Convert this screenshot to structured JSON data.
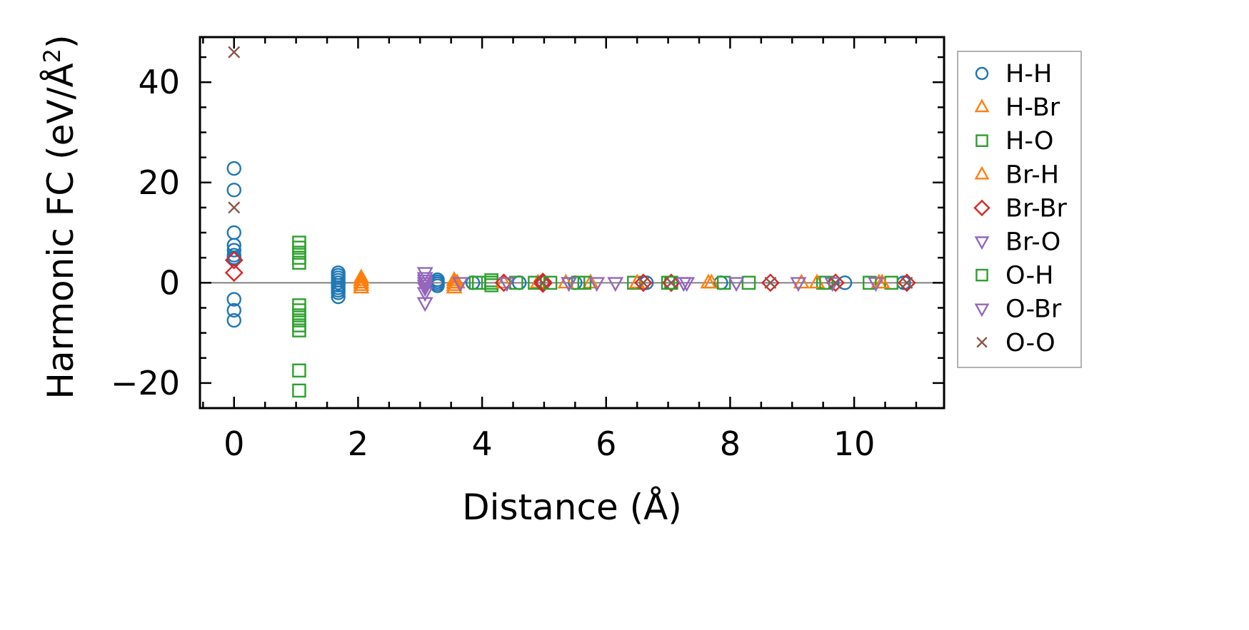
{
  "chart_data": {
    "type": "scatter",
    "xlabel": "Distance (Å)",
    "ylabel_main": "Harmonic FC (eV/Å",
    "ylabel_sup": "2",
    "ylabel_tail": ")",
    "xlim": [
      -0.55,
      11.45
    ],
    "ylim": [
      -25,
      49
    ],
    "xticks": [
      0,
      2,
      4,
      6,
      8,
      10
    ],
    "yticks": [
      -20,
      0,
      20,
      40
    ],
    "xtick_labels": [
      "0",
      "2",
      "4",
      "6",
      "8",
      "10"
    ],
    "ytick_labels": [
      "−20",
      "0",
      "20",
      "40"
    ],
    "zero_line": 0,
    "grid": false,
    "legend_position": "outside-right",
    "series": [
      {
        "name": "H-H",
        "marker": "circle",
        "color": "#1f77b4",
        "x": [
          0,
          0,
          0,
          0,
          0,
          0,
          0,
          0,
          0,
          0,
          0,
          1.68,
          1.68,
          1.68,
          1.68,
          1.68,
          1.68,
          1.68,
          1.68,
          1.68,
          1.68,
          3.28,
          3.28,
          3.28,
          3.28,
          3.85,
          4.6,
          5.5,
          6.65,
          7.85,
          9.85,
          10.8
        ],
        "y": [
          22.8,
          18.5,
          10.0,
          7.5,
          6.5,
          5.5,
          4.8,
          -3.3,
          -5.5,
          -7.5,
          5.0,
          2.0,
          1.5,
          1.0,
          0.5,
          0,
          -0.5,
          -1.0,
          -1.5,
          -2.0,
          -2.8,
          0.6,
          0.2,
          -0.2,
          -0.6,
          0,
          0,
          0,
          0,
          0,
          0,
          0
        ]
      },
      {
        "name": "H-Br",
        "marker": "triangle-up",
        "color": "#ff7f0e",
        "x": [
          2.05,
          2.05,
          2.05,
          2.05,
          2.05,
          3.55,
          3.55,
          3.55,
          3.55,
          4.9,
          5.75,
          7.65,
          9.15,
          10.4
        ],
        "y": [
          1.0,
          0.5,
          0,
          -0.5,
          -1.0,
          0.5,
          0,
          -0.5,
          -1.0,
          0,
          0,
          0,
          0,
          0
        ]
      },
      {
        "name": "H-O",
        "marker": "square",
        "color": "#2ca02c",
        "x": [
          1.05,
          1.05,
          1.05,
          1.05,
          1.05,
          1.05,
          1.05,
          1.05,
          1.05,
          1.05,
          1.05,
          1.05,
          1.05,
          3.9,
          4.15,
          4.15,
          4.15,
          4.85,
          5.55,
          6.45,
          7.05,
          8.3,
          9.5,
          10.25,
          10.6
        ],
        "y": [
          8.0,
          7.0,
          6.0,
          5.0,
          4.0,
          -4.5,
          -5.5,
          -6.5,
          -7.5,
          -8.5,
          -9.5,
          -17.5,
          -21.5,
          0,
          0.5,
          0,
          -0.5,
          0,
          0,
          0,
          0,
          0,
          0,
          0,
          0
        ]
      },
      {
        "name": "Br-H",
        "marker": "triangle-up",
        "color": "#ff7f0e",
        "x": [
          3.6,
          4.35,
          5.35,
          6.5,
          7.7,
          9.4,
          10.45
        ],
        "y": [
          0,
          0,
          0,
          0,
          0,
          0,
          0
        ]
      },
      {
        "name": "Br-Br",
        "marker": "diamond",
        "color": "#d62728",
        "x": [
          0,
          0,
          4.35,
          4.98,
          4.98,
          6.6,
          7.05,
          8.65,
          9.7,
          10.85
        ],
        "y": [
          4.5,
          2.0,
          0,
          0.2,
          -0.2,
          0,
          0,
          0,
          0,
          0
        ]
      },
      {
        "name": "Br-O",
        "marker": "triangle-down",
        "color": "#9467bd",
        "x": [
          3.08,
          3.08,
          3.08,
          3.08,
          3.08,
          3.08,
          3.08,
          3.08,
          3.65,
          5.4,
          6.15,
          7.3,
          9.1,
          10.35
        ],
        "y": [
          2.0,
          1.0,
          0.5,
          0,
          -0.5,
          -1.0,
          -2.0,
          -4.0,
          0,
          0,
          0,
          0,
          0,
          0
        ]
      },
      {
        "name": "O-H",
        "marker": "square",
        "color": "#2ca02c",
        "x": [
          3.95,
          4.55,
          5.1,
          5.65,
          7.0,
          7.9,
          9.55
        ],
        "y": [
          0,
          0,
          0,
          0,
          0,
          0,
          0
        ]
      },
      {
        "name": "O-Br",
        "marker": "triangle-down",
        "color": "#9467bd",
        "x": [
          4.4,
          5.4,
          5.85,
          7.25,
          8.1,
          9.65
        ],
        "y": [
          0,
          0,
          0,
          0,
          0,
          0
        ]
      },
      {
        "name": "O-O",
        "marker": "x",
        "color": "#8c564b",
        "x": [
          0,
          0,
          4.98,
          6.6,
          7.05,
          8.65,
          9.7,
          10.85
        ],
        "y": [
          46.0,
          15.0,
          0,
          0,
          0,
          0,
          0,
          0
        ]
      }
    ]
  }
}
